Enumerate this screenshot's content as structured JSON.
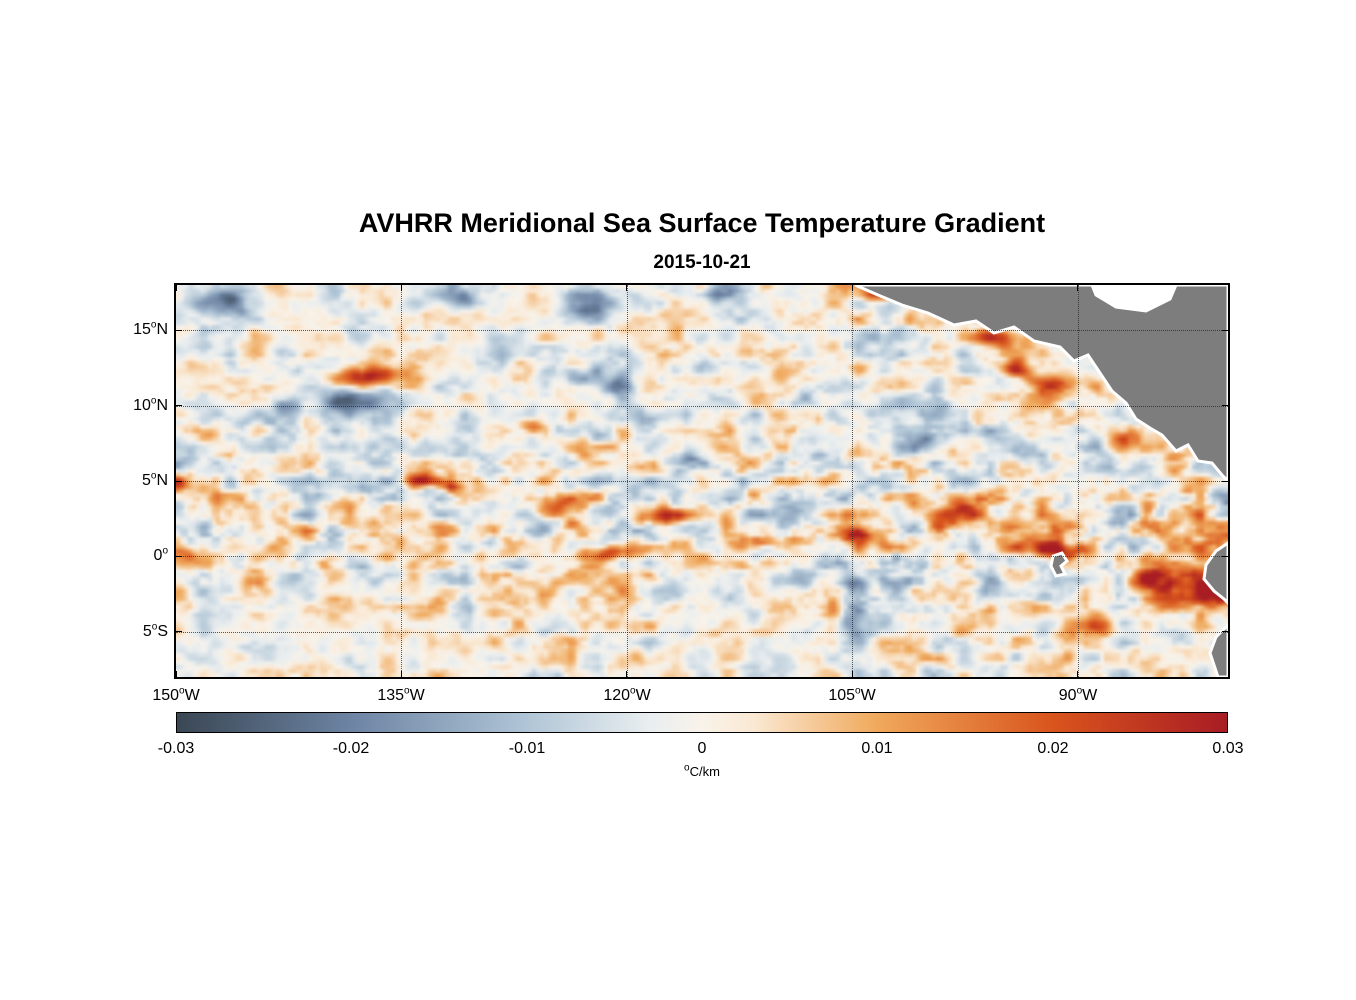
{
  "title": "AVHRR Meridional Sea Surface Temperature Gradient",
  "subtitle": "2015-10-21",
  "chart_data": {
    "type": "heatmap",
    "title": "AVHRR Meridional Sea Surface Temperature Gradient",
    "date": "2015-10-21",
    "variable": "meridional sea surface temperature gradient",
    "degree_symbol": "o",
    "x_axis": {
      "range_deg_lon": [
        -150,
        -80
      ],
      "tick_lons": [
        -150,
        -135,
        -120,
        -105,
        -90
      ],
      "ticks": [
        {
          "value": "150",
          "suffix": "W"
        },
        {
          "value": "135",
          "suffix": "W"
        },
        {
          "value": "120",
          "suffix": "W"
        },
        {
          "value": "105",
          "suffix": "W"
        },
        {
          "value": "90",
          "suffix": "W"
        }
      ],
      "grid": "dotted"
    },
    "y_axis": {
      "range_deg_lat": [
        -8,
        18
      ],
      "tick_lats": [
        15,
        10,
        5,
        0,
        -5
      ],
      "ticks": [
        {
          "value": "15",
          "suffix": "N"
        },
        {
          "value": "10",
          "suffix": "N"
        },
        {
          "value": "5",
          "suffix": "N"
        },
        {
          "value": "0",
          "suffix": ""
        },
        {
          "value": "5",
          "suffix": "S"
        }
      ],
      "grid": "dotted"
    },
    "colorbar": {
      "min": -0.03,
      "max": 0.03,
      "tick_labels": [
        "-0.03",
        "-0.02",
        "-0.01",
        "0",
        "0.01",
        "0.02",
        "0.03"
      ],
      "unit_text": "C/km",
      "stops": [
        {
          "v": -0.03,
          "c": "#3a4754"
        },
        {
          "v": -0.02,
          "c": "#6d84a4"
        },
        {
          "v": -0.01,
          "c": "#b0c5d6"
        },
        {
          "v": -0.003,
          "c": "#e9eef0"
        },
        {
          "v": 0.0,
          "c": "#f9f3ea"
        },
        {
          "v": 0.003,
          "c": "#fae8d2"
        },
        {
          "v": 0.01,
          "c": "#f0a95c"
        },
        {
          "v": 0.02,
          "c": "#d9551d"
        },
        {
          "v": 0.03,
          "c": "#a81c24"
        }
      ]
    },
    "land_color": "#7d7d7d",
    "coastline_color": "#ffffff",
    "features": [
      {
        "lon": -137.3,
        "lat": 12.1,
        "peak": 0.032,
        "rx": 2.2,
        "ry": 0.75
      },
      {
        "lon": -138.4,
        "lat": 10.4,
        "peak": -0.03,
        "rx": 2.6,
        "ry": 0.8
      },
      {
        "lon": -146.5,
        "lat": 17.2,
        "peak": -0.02,
        "rx": 2.0,
        "ry": 0.9
      },
      {
        "lon": -131.5,
        "lat": 17.6,
        "peak": -0.018,
        "rx": 1.8,
        "ry": 0.8
      },
      {
        "lon": -122.5,
        "lat": 16.8,
        "peak": -0.02,
        "rx": 1.8,
        "ry": 0.9
      },
      {
        "lon": -113.5,
        "lat": 17.6,
        "peak": -0.016,
        "rx": 1.5,
        "ry": 0.8
      },
      {
        "lon": -103.5,
        "lat": 17.4,
        "peak": 0.02,
        "rx": 1.4,
        "ry": 0.5
      },
      {
        "lon": -96.5,
        "lat": 16.2,
        "peak": 0.02,
        "rx": 1.2,
        "ry": 0.5
      },
      {
        "lon": -95.5,
        "lat": 14.6,
        "peak": 0.022,
        "rx": 2.2,
        "ry": 0.6
      },
      {
        "lon": -93.5,
        "lat": 16.5,
        "peak": 0.018,
        "rx": 1.5,
        "ry": 0.5
      },
      {
        "lon": -94.0,
        "lat": 12.5,
        "peak": 0.018,
        "rx": 1.0,
        "ry": 0.6
      },
      {
        "lon": -91.5,
        "lat": 11.4,
        "peak": 0.02,
        "rx": 1.6,
        "ry": 0.7
      },
      {
        "lon": -86.5,
        "lat": 7.8,
        "peak": 0.02,
        "rx": 1.2,
        "ry": 0.8
      },
      {
        "lon": -80.5,
        "lat": 7.0,
        "peak": 0.022,
        "rx": 1.0,
        "ry": 0.9
      },
      {
        "lon": -123.3,
        "lat": 12.0,
        "peak": -0.016,
        "rx": 1.5,
        "ry": 0.8
      },
      {
        "lon": -120.7,
        "lat": 11.4,
        "peak": -0.018,
        "rx": 1.4,
        "ry": 0.7
      },
      {
        "lon": -128.0,
        "lat": 13.5,
        "peak": -0.014,
        "rx": 1.3,
        "ry": 0.7
      },
      {
        "lon": -143.0,
        "lat": 10.0,
        "peak": -0.012,
        "rx": 1.5,
        "ry": 0.8
      },
      {
        "lon": -133.8,
        "lat": 5.1,
        "peak": 0.022,
        "rx": 1.1,
        "ry": 0.45
      },
      {
        "lon": -131.8,
        "lat": 4.6,
        "peak": 0.018,
        "rx": 0.9,
        "ry": 0.45
      },
      {
        "lon": -126.2,
        "lat": 8.8,
        "peak": 0.02,
        "rx": 0.9,
        "ry": 0.5
      },
      {
        "lon": -124.5,
        "lat": 3.2,
        "peak": 0.02,
        "rx": 1.6,
        "ry": 0.6
      },
      {
        "lon": -118.0,
        "lat": 2.6,
        "peak": 0.022,
        "rx": 2.2,
        "ry": 0.6
      },
      {
        "lon": -111.0,
        "lat": 0.8,
        "peak": 0.02,
        "rx": 2.5,
        "ry": 0.5
      },
      {
        "lon": -104.5,
        "lat": 1.4,
        "peak": 0.022,
        "rx": 1.8,
        "ry": 0.6
      },
      {
        "lon": -97.5,
        "lat": 2.8,
        "peak": 0.026,
        "rx": 2.8,
        "ry": 0.9
      },
      {
        "lon": -91.0,
        "lat": 0.3,
        "peak": 0.032,
        "rx": 2.2,
        "ry": 0.7
      },
      {
        "lon": -84.0,
        "lat": -1.8,
        "peak": 0.03,
        "rx": 2.4,
        "ry": 1.2
      },
      {
        "lon": -81.5,
        "lat": 0.5,
        "peak": 0.028,
        "rx": 1.2,
        "ry": 1.0
      },
      {
        "lon": -80.8,
        "lat": -2.5,
        "peak": 0.028,
        "rx": 1.2,
        "ry": 1.5
      },
      {
        "lon": -88.5,
        "lat": -4.8,
        "peak": 0.018,
        "rx": 1.2,
        "ry": 0.7
      },
      {
        "lon": -104.8,
        "lat": -2.0,
        "peak": -0.018,
        "rx": 1.0,
        "ry": 1.0
      },
      {
        "lon": -104.3,
        "lat": 4.8,
        "peak": -0.014,
        "rx": 0.8,
        "ry": 0.8
      },
      {
        "lon": -105.0,
        "lat": -4.6,
        "peak": -0.016,
        "rx": 0.9,
        "ry": 0.9
      },
      {
        "lon": -99.5,
        "lat": 7.5,
        "peak": -0.014,
        "rx": 1.2,
        "ry": 0.6
      },
      {
        "lon": -116.0,
        "lat": 6.5,
        "peak": -0.014,
        "rx": 1.2,
        "ry": 0.5
      },
      {
        "lon": -102.0,
        "lat": -2.5,
        "peak": -0.014,
        "rx": 1.2,
        "ry": 0.7
      },
      {
        "lon": -87.0,
        "lat": -3.5,
        "peak": -0.016,
        "rx": 1.0,
        "ry": 0.9
      },
      {
        "lon": -80.5,
        "lat": -4.3,
        "peak": -0.018,
        "rx": 0.8,
        "ry": 0.8
      },
      {
        "lon": -150.0,
        "lat": 0.3,
        "peak": 0.02,
        "rx": 1.0,
        "ry": 0.5
      },
      {
        "lon": -150.0,
        "lat": 4.8,
        "peak": 0.018,
        "rx": 0.8,
        "ry": 0.5
      },
      {
        "lon": -121.0,
        "lat": 0.2,
        "peak": 0.02,
        "rx": 2.0,
        "ry": 0.45
      },
      {
        "lon": -128.5,
        "lat": 0.0,
        "peak": 0.014,
        "rx": 1.5,
        "ry": 0.5
      }
    ]
  }
}
